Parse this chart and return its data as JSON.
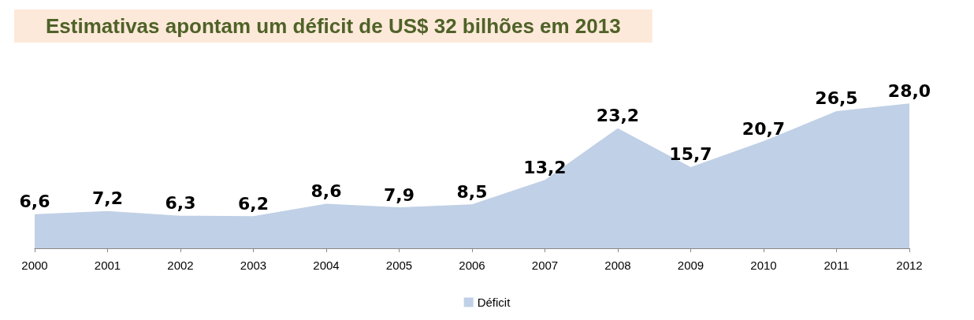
{
  "chart_data": {
    "type": "area",
    "title": "Estimativas apontam um déficit de US$ 32 bilhões em 2013",
    "categories": [
      "2000",
      "2001",
      "2002",
      "2003",
      "2004",
      "2005",
      "2006",
      "2007",
      "2008",
      "2009",
      "2010",
      "2011",
      "2012"
    ],
    "series": [
      {
        "name": "Déficit",
        "color": "#c0d0e6",
        "values": [
          6.6,
          7.2,
          6.3,
          6.2,
          8.6,
          7.9,
          8.5,
          13.2,
          23.2,
          15.7,
          20.7,
          26.5,
          28.0
        ],
        "value_labels": [
          "6,6",
          "7,2",
          "6,3",
          "6,2",
          "8,6",
          "7,9",
          "8,5",
          "13,2",
          "23,2",
          "15,7",
          "20,7",
          "26,5",
          "28,0"
        ]
      }
    ],
    "data_labels": true,
    "legend": "bottom",
    "grid": false
  }
}
